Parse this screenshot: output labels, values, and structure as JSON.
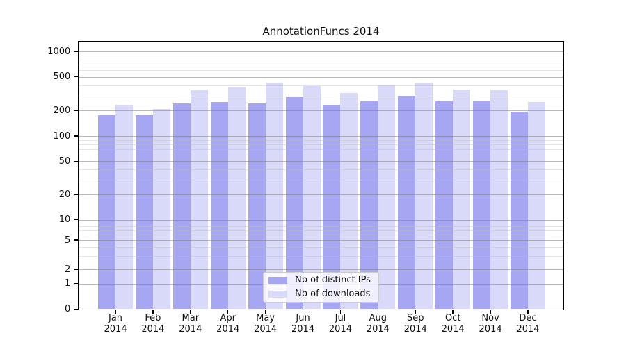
{
  "title": "AnnotationFuncs 2014",
  "chart_data": {
    "type": "bar",
    "title": "AnnotationFuncs 2014",
    "categories": [
      "Jan",
      "Feb",
      "Mar",
      "Apr",
      "May",
      "Jun",
      "Jul",
      "Aug",
      "Sep",
      "Oct",
      "Nov",
      "Dec"
    ],
    "year": "2014",
    "series": [
      {
        "name": "Nb of distinct IPs",
        "color": "#a6a6f2",
        "values": [
          175,
          175,
          245,
          250,
          245,
          290,
          235,
          255,
          300,
          255,
          255,
          195
        ]
      },
      {
        "name": "Nb of downloads",
        "color": "#d9d9f9",
        "values": [
          235,
          210,
          350,
          385,
          430,
          390,
          320,
          395,
          425,
          355,
          350,
          250
        ]
      }
    ],
    "yticks": [
      0,
      1,
      2,
      5,
      10,
      20,
      50,
      100,
      200,
      500,
      1000
    ],
    "yscale": "symlog",
    "ylim": [
      0,
      1400
    ],
    "xlabel": "",
    "ylabel": "",
    "grid": true,
    "legend_position": "lower center"
  },
  "legend": {
    "items": [
      "Nb of distinct IPs",
      "Nb of downloads"
    ]
  }
}
